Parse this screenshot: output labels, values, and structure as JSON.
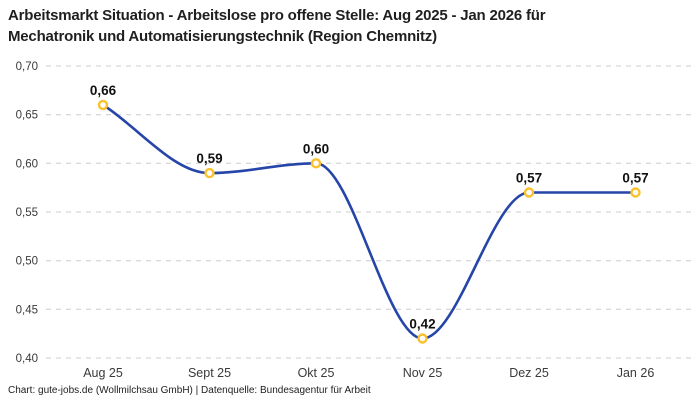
{
  "header": {
    "title_line1": "Arbeitsmarkt Situation - Arbeitslose pro offene Stelle: Aug 2025 - Jan 2026 für",
    "title_line2": "Mechatronik und Automatisierungstechnik (Region Chemnitz)"
  },
  "footer": {
    "text": "Chart: gute-jobs.de (Wollmilchsau GmbH) | Datenquelle: Bundesagentur für Arbeit"
  },
  "chart_data": {
    "type": "line",
    "title": "Arbeitsmarkt Situation - Arbeitslose pro offene Stelle: Aug 2025 - Jan 2026 für Mechatronik und Automatisierungstechnik (Region Chemnitz)",
    "categories": [
      "Aug 25",
      "Sept 25",
      "Okt 25",
      "Nov 25",
      "Dez 25",
      "Jan 26"
    ],
    "values": [
      0.66,
      0.59,
      0.6,
      0.42,
      0.57,
      0.57
    ],
    "value_labels": [
      "0,66",
      "0,59",
      "0,60",
      "0,42",
      "0,57",
      "0,57"
    ],
    "y_ticks": [
      0.7,
      0.65,
      0.6,
      0.55,
      0.5,
      0.45,
      0.4
    ],
    "y_tick_labels": [
      "0,70",
      "0,65",
      "0,60",
      "0,55",
      "0,50",
      "0,45",
      "0,40"
    ],
    "ylim": [
      0.4,
      0.7
    ],
    "xlabel": "",
    "ylabel": "",
    "legend": "none",
    "grid": "horizontal-dashed",
    "curve": "monotone",
    "colors": {
      "line": "#2545A8",
      "marker_ring": "#FBC12D",
      "marker_fill": "#FFFFFF",
      "grid": "#CCCCCC",
      "axis_text": "#3A3A3A",
      "value_label_text": "#111111",
      "title_text": "#1F1F1F"
    }
  }
}
